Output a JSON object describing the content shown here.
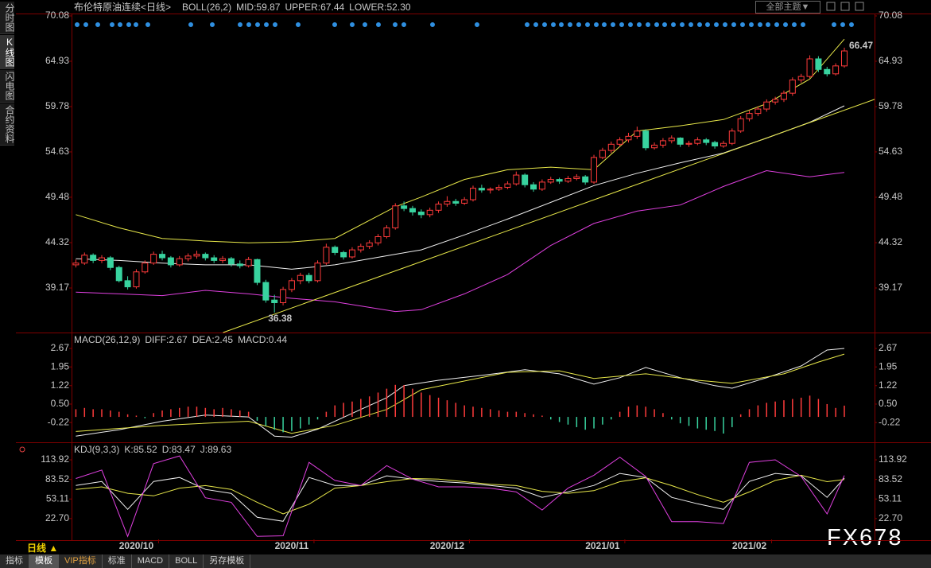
{
  "ui": {
    "sidebar": [
      "分时图",
      "K线图",
      "闪电图",
      "合约资料"
    ],
    "theme_button": "全部主题▼",
    "period": "日线 ▲",
    "tabs": [
      "指标",
      "模板",
      "VIP指标",
      "标准",
      "MACD",
      "BOLL",
      "另存模板"
    ],
    "watermark": "FX678"
  },
  "chart_data": [
    {
      "type": "candlestick",
      "title": "布伦特原油连续",
      "period": "<日线>",
      "indicator": "BOLL(26,2)",
      "up_color": "#ff3b3b",
      "down_color": "#38d39f",
      "xlim": [
        -0.5,
        92.5
      ],
      "ylim": [
        34.11,
        70.08
      ],
      "yticks": [
        70.08,
        64.93,
        59.78,
        54.63,
        49.48,
        44.32,
        39.17
      ],
      "candles": [
        [
          41.8,
          42.4,
          41.5,
          42.0
        ],
        [
          42.0,
          43.2,
          41.8,
          42.9
        ],
        [
          42.9,
          43.1,
          42.0,
          42.3
        ],
        [
          42.3,
          42.9,
          42.0,
          42.6
        ],
        [
          42.6,
          42.8,
          41.2,
          41.5
        ],
        [
          41.5,
          41.7,
          39.8,
          40.0
        ],
        [
          40.0,
          40.5,
          39.0,
          39.3
        ],
        [
          39.3,
          41.3,
          39.1,
          41.0
        ],
        [
          41.0,
          42.3,
          40.8,
          42.0
        ],
        [
          42.0,
          43.3,
          41.8,
          43.0
        ],
        [
          43.0,
          43.4,
          42.3,
          42.6
        ],
        [
          42.6,
          42.8,
          41.5,
          41.8
        ],
        [
          41.8,
          42.8,
          41.6,
          42.5
        ],
        [
          42.5,
          43.1,
          42.2,
          42.8
        ],
        [
          42.8,
          43.4,
          42.5,
          43.0
        ],
        [
          43.0,
          43.2,
          42.3,
          42.6
        ],
        [
          42.6,
          42.9,
          42.0,
          42.3
        ],
        [
          42.3,
          42.8,
          42.0,
          42.5
        ],
        [
          42.5,
          42.7,
          41.6,
          41.9
        ],
        [
          41.9,
          42.3,
          41.4,
          41.7
        ],
        [
          41.7,
          42.7,
          41.5,
          42.4
        ],
        [
          42.4,
          42.5,
          39.5,
          39.8
        ],
        [
          39.8,
          40.1,
          37.5,
          37.8
        ],
        [
          37.8,
          38.4,
          36.38,
          37.5
        ],
        [
          37.5,
          39.3,
          37.2,
          39.0
        ],
        [
          39.0,
          40.3,
          38.7,
          40.0
        ],
        [
          40.0,
          40.9,
          39.6,
          40.6
        ],
        [
          40.6,
          40.9,
          39.7,
          40.0
        ],
        [
          40.0,
          42.3,
          39.8,
          42.0
        ],
        [
          42.0,
          44.2,
          41.8,
          43.8
        ],
        [
          43.8,
          44.0,
          42.9,
          43.2
        ],
        [
          43.2,
          43.4,
          42.4,
          42.7
        ],
        [
          42.7,
          43.8,
          42.5,
          43.5
        ],
        [
          43.5,
          44.2,
          43.2,
          43.9
        ],
        [
          43.9,
          44.6,
          43.6,
          44.3
        ],
        [
          44.3,
          45.3,
          44.0,
          45.0
        ],
        [
          45.0,
          46.3,
          44.8,
          46.0
        ],
        [
          46.0,
          48.8,
          45.8,
          48.5
        ],
        [
          48.5,
          49.0,
          47.9,
          48.2
        ],
        [
          48.2,
          48.5,
          47.4,
          47.8
        ],
        [
          47.8,
          48.1,
          47.1,
          47.5
        ],
        [
          47.5,
          48.3,
          47.2,
          48.0
        ],
        [
          48.0,
          49.0,
          47.7,
          48.7
        ],
        [
          48.7,
          49.6,
          48.4,
          49.0
        ],
        [
          49.0,
          49.3,
          48.5,
          48.8
        ],
        [
          48.8,
          49.5,
          48.6,
          49.2
        ],
        [
          49.2,
          50.8,
          49.0,
          50.5
        ],
        [
          50.5,
          50.9,
          50.0,
          50.3
        ],
        [
          50.3,
          50.6,
          49.9,
          50.4
        ],
        [
          50.4,
          50.9,
          50.2,
          50.6
        ],
        [
          50.6,
          51.3,
          50.4,
          51.0
        ],
        [
          51.0,
          52.4,
          50.8,
          52.0
        ],
        [
          52.0,
          52.2,
          50.6,
          50.9
        ],
        [
          50.9,
          51.2,
          50.1,
          50.4
        ],
        [
          50.4,
          51.5,
          50.2,
          51.2
        ],
        [
          51.2,
          51.8,
          51.0,
          51.5
        ],
        [
          51.5,
          51.7,
          51.0,
          51.3
        ],
        [
          51.3,
          51.9,
          51.1,
          51.6
        ],
        [
          51.6,
          52.1,
          51.4,
          51.8
        ],
        [
          51.8,
          52.0,
          50.9,
          51.2
        ],
        [
          51.2,
          54.3,
          51.0,
          54.0
        ],
        [
          54.0,
          55.1,
          53.8,
          54.8
        ],
        [
          54.8,
          55.8,
          54.5,
          55.5
        ],
        [
          55.5,
          56.3,
          55.2,
          56.0
        ],
        [
          56.0,
          56.8,
          55.7,
          56.4
        ],
        [
          56.4,
          57.5,
          56.1,
          57.0
        ],
        [
          57.0,
          57.2,
          54.8,
          55.1
        ],
        [
          55.1,
          55.7,
          54.9,
          55.4
        ],
        [
          55.4,
          56.2,
          55.1,
          55.9
        ],
        [
          55.9,
          56.5,
          55.6,
          56.2
        ],
        [
          56.2,
          56.3,
          55.2,
          55.5
        ],
        [
          55.5,
          55.9,
          55.2,
          55.6
        ],
        [
          55.6,
          56.3,
          55.4,
          56.0
        ],
        [
          56.0,
          56.2,
          55.4,
          55.7
        ],
        [
          55.7,
          55.9,
          55.0,
          55.3
        ],
        [
          55.3,
          55.9,
          55.1,
          55.6
        ],
        [
          55.6,
          57.3,
          55.4,
          57.0
        ],
        [
          57.0,
          58.7,
          56.8,
          58.4
        ],
        [
          58.4,
          59.3,
          58.1,
          59.0
        ],
        [
          59.0,
          59.8,
          58.7,
          59.5
        ],
        [
          59.5,
          60.6,
          59.2,
          60.3
        ],
        [
          60.3,
          60.9,
          60.0,
          60.6
        ],
        [
          60.6,
          61.6,
          60.3,
          61.3
        ],
        [
          61.3,
          63.1,
          61.0,
          62.8
        ],
        [
          62.8,
          63.5,
          62.5,
          63.2
        ],
        [
          63.2,
          65.6,
          63.0,
          65.2
        ],
        [
          65.2,
          65.5,
          63.7,
          64.0
        ],
        [
          64.0,
          64.3,
          63.2,
          63.5
        ],
        [
          63.5,
          64.7,
          63.3,
          64.4
        ],
        [
          64.4,
          66.47,
          64.2,
          66.1
        ]
      ],
      "series": [
        {
          "name": "MID:59.87",
          "color": "#f0f0f0",
          "x": [
            0,
            5,
            10,
            15,
            20,
            25,
            30,
            37,
            40,
            45,
            50,
            55,
            60,
            65,
            70,
            75,
            80,
            85,
            89
          ],
          "values": [
            42.5,
            42.3,
            42.0,
            41.8,
            41.8,
            41.3,
            41.8,
            43.0,
            43.5,
            45.2,
            47.0,
            48.9,
            50.8,
            52.2,
            53.4,
            54.5,
            56.2,
            58.0,
            59.87
          ]
        },
        {
          "name": "UPPER:67.44",
          "color": "#e8e84a",
          "x": [
            0,
            5,
            10,
            15,
            20,
            25,
            30,
            37,
            40,
            45,
            50,
            55,
            60,
            65,
            70,
            75,
            80,
            85,
            89
          ],
          "values": [
            47.5,
            46.0,
            44.8,
            44.5,
            44.3,
            44.4,
            44.8,
            48.4,
            49.5,
            51.5,
            52.6,
            52.9,
            52.6,
            57.0,
            57.6,
            58.3,
            60.1,
            62.9,
            67.44
          ]
        },
        {
          "name": "LOWER:52.30",
          "color": "#e040e0",
          "x": [
            0,
            5,
            10,
            15,
            20,
            25,
            30,
            37,
            40,
            45,
            50,
            55,
            60,
            65,
            70,
            75,
            80,
            85,
            89
          ],
          "values": [
            38.7,
            38.5,
            38.3,
            38.9,
            38.5,
            38.0,
            37.6,
            36.5,
            36.7,
            38.5,
            40.7,
            44.0,
            46.5,
            47.9,
            48.6,
            50.7,
            52.5,
            51.8,
            52.3
          ]
        }
      ],
      "trendline": {
        "color": "#e8e84a",
        "x": [
          17.05,
          92.5
        ],
        "values": [
          34.11,
          60.6
        ]
      }
    },
    {
      "type": "line",
      "title": "MACD(26,12,9)",
      "xlim": [
        -0.5,
        92.5
      ],
      "ylim": [
        -0.96,
        3.23
      ],
      "yticks": [
        2.67,
        1.95,
        1.22,
        {
          "value": 0.5,
          "label": "0.50"
        },
        -0.22
      ],
      "series": [
        {
          "name": "DIFF:2.67",
          "color": "#f0f0f0",
          "x": [
            0,
            5,
            10,
            15,
            20,
            23,
            25,
            28,
            32,
            36,
            38,
            42,
            47,
            52,
            56,
            60,
            63,
            66,
            70,
            74,
            76,
            80,
            84,
            87,
            89
          ],
          "values": [
            -0.75,
            -0.5,
            -0.17,
            0.07,
            0,
            -0.75,
            -0.79,
            -0.48,
            0.14,
            0.75,
            1.22,
            1.43,
            1.62,
            1.84,
            1.68,
            1.28,
            1.53,
            1.93,
            1.53,
            1.22,
            1.12,
            1.53,
            1.99,
            2.61,
            2.67
          ]
        },
        {
          "name": "DEA:2.45",
          "color": "#e8e84a",
          "x": [
            0,
            10,
            20,
            25,
            30,
            36,
            40,
            50,
            56,
            60,
            66,
            72,
            76,
            82,
            86,
            89
          ],
          "values": [
            -0.57,
            -0.33,
            -0.17,
            -0.64,
            -0.33,
            0.29,
            1.06,
            1.74,
            1.8,
            1.5,
            1.68,
            1.43,
            1.31,
            1.68,
            2.14,
            2.45
          ]
        },
        {
          "name": "MACD:0.44",
          "type": "bar",
          "color": "#e040e0",
          "up_color": "#ff3b3b",
          "down_color": "#38d39f",
          "values": [
            0.3,
            0.35,
            0.3,
            0.3,
            0.25,
            0.2,
            0.1,
            0.05,
            -0.05,
            0.15,
            0.25,
            0.3,
            0.35,
            0.4,
            0.4,
            0.35,
            0.3,
            0.35,
            0.3,
            0.25,
            0.2,
            -0.15,
            -0.35,
            -0.5,
            -0.6,
            -0.55,
            -0.45,
            -0.3,
            -0.1,
            0.2,
            0.45,
            0.55,
            0.6,
            0.7,
            0.8,
            0.95,
            1.1,
            1.25,
            1.24,
            1.1,
            0.95,
            0.85,
            0.75,
            0.65,
            0.55,
            0.45,
            0.4,
            0.35,
            0.3,
            0.25,
            0.2,
            0.2,
            0.15,
            0.1,
            0.05,
            -0.1,
            -0.2,
            -0.3,
            -0.4,
            -0.5,
            -0.45,
            -0.3,
            -0.1,
            0.2,
            0.4,
            0.45,
            0.4,
            0.3,
            0.15,
            -0.1,
            -0.25,
            -0.35,
            -0.45,
            -0.5,
            -0.55,
            -0.65,
            -0.4,
            0.1,
            0.3,
            0.45,
            0.55,
            0.6,
            0.65,
            0.7,
            0.75,
            0.83,
            0.7,
            0.5,
            0.35,
            0.44
          ]
        }
      ]
    },
    {
      "type": "line",
      "title": "KDJ(9,3,3)",
      "xlim": [
        -0.5,
        92.5
      ],
      "ylim": [
        -9.6,
        138.7
      ],
      "yticks": [
        113.92,
        83.52,
        53.11,
        {
          "value": 22.7,
          "label": "22.70"
        }
      ],
      "xticks": [
        {
          "value": 7,
          "label": "2020/10"
        },
        {
          "value": 25,
          "label": "2020/11"
        },
        {
          "value": 43,
          "label": "2020/12"
        },
        {
          "value": 61,
          "label": "2021/01"
        },
        {
          "value": 78,
          "label": "2021/02"
        }
      ],
      "x": [
        0,
        3,
        6,
        9,
        12,
        15,
        18,
        21,
        24,
        27,
        30,
        33,
        36,
        39,
        42,
        45,
        48,
        51,
        54,
        57,
        60,
        63,
        66,
        69,
        72,
        75,
        78,
        81,
        84,
        87,
        89
      ],
      "series": [
        {
          "name": "K:85.52",
          "color": "#f0f0f0",
          "values": [
            74.2,
            80.4,
            37.0,
            80.4,
            86.6,
            68.0,
            61.8,
            24.6,
            18.4,
            86.6,
            74.2,
            74.2,
            89.1,
            84.1,
            80.4,
            78.0,
            74.2,
            70.0,
            55.6,
            64.3,
            74.2,
            92.8,
            86.6,
            55.6,
            45.7,
            37.0,
            80.4,
            92.8,
            89.1,
            55.6,
            85.52
          ]
        },
        {
          "name": "D:83.47",
          "color": "#e8e84a",
          "values": [
            68,
            72,
            62,
            58,
            70,
            74,
            68,
            48,
            30,
            45,
            70,
            74,
            80,
            85,
            84,
            80,
            76,
            74,
            65,
            62,
            66,
            80,
            86,
            74,
            60,
            48,
            64,
            82,
            90,
            80,
            83.47
          ]
        },
        {
          "name": "J:89.63",
          "color": "#e040e0",
          "values": [
            85,
            98,
            -5,
            108,
            120,
            55,
            48,
            -5,
            -4,
            110,
            82,
            74,
            105,
            84,
            72,
            72,
            70,
            64,
            36,
            70,
            90,
            118,
            88,
            18,
            18,
            15,
            110,
            114,
            88,
            30,
            89.63
          ]
        }
      ]
    }
  ]
}
